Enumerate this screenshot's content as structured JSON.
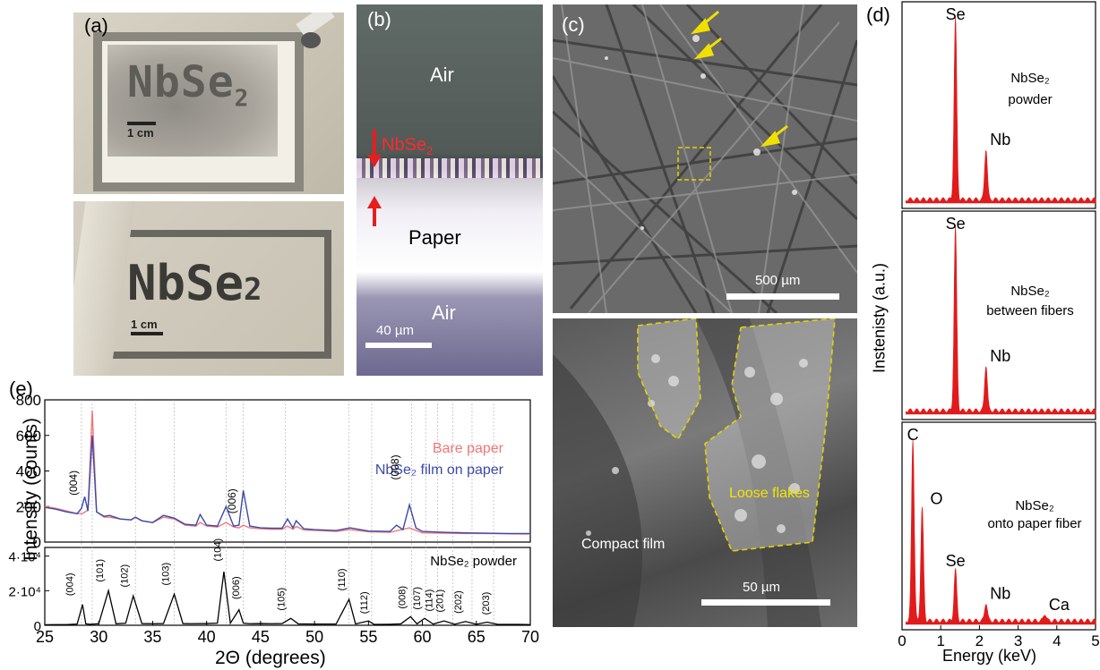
{
  "panels": {
    "a": {
      "label": "(a)",
      "top_stencil_text": "NbSe",
      "top_stencil_sub": "2",
      "top_scale": "1 cm",
      "bottom_stencil_text": "NbSe",
      "bottom_stencil_sub": "2",
      "bottom_scale": "1 cm"
    },
    "b": {
      "label": "(b)",
      "air_top": "Air",
      "film": "NbSe",
      "film_sub": "2",
      "paper": "Paper",
      "air_bottom": "Air",
      "scale": "40 µm"
    },
    "c": {
      "label": "(c)",
      "scale_top": "500 µm",
      "loose": "Loose flakes",
      "compact": "Compact film",
      "scale_bottom": "50 µm"
    },
    "d": {
      "label": "(d)",
      "ylabel": "Instenisty (a.u.)",
      "xlabel": "Energy (keV)"
    },
    "e": {
      "label": "(e)",
      "ylabel": "Intensity (counts)",
      "xlabel": "2Θ (degrees)"
    }
  },
  "chart_data": [
    {
      "type": "line",
      "panel": "e-top",
      "series": [
        {
          "name": "Bare paper",
          "color": "#f07878",
          "x": [
            25,
            26,
            27,
            28,
            28.5,
            29,
            29.4,
            29.8,
            30.5,
            31,
            32,
            33,
            33.4,
            34,
            35,
            36,
            37,
            38,
            39,
            39.4,
            40,
            41,
            41.8,
            42.5,
            43,
            43.4,
            44,
            45,
            46,
            47,
            47.5,
            48,
            48.3,
            49,
            50,
            52,
            53.3,
            55,
            57,
            58.8,
            60,
            62,
            64,
            66,
            68,
            70
          ],
          "y": [
            200,
            190,
            175,
            160,
            160,
            180,
            740,
            170,
            140,
            140,
            130,
            125,
            140,
            120,
            110,
            140,
            130,
            95,
            90,
            110,
            90,
            85,
            110,
            85,
            80,
            95,
            80,
            75,
            72,
            72,
            90,
            72,
            88,
            68,
            66,
            60,
            70,
            58,
            55,
            80,
            52,
            50,
            48,
            48,
            46,
            45
          ]
        },
        {
          "name": "NbSe₂ film on paper",
          "color": "#3b4aa8",
          "x": [
            25,
            26,
            27,
            28,
            28.4,
            28.7,
            29,
            29.4,
            29.8,
            30.5,
            31,
            32,
            33,
            33.4,
            34,
            35,
            36,
            37,
            38,
            39,
            39.4,
            40,
            41,
            41.8,
            42.5,
            43,
            43.4,
            44,
            45,
            46,
            47,
            47.5,
            48,
            48.3,
            49,
            50,
            52,
            53.3,
            55,
            57,
            57.6,
            58.2,
            58.8,
            59.4,
            60,
            62,
            64,
            66,
            68,
            70
          ],
          "y": [
            195,
            185,
            170,
            160,
            190,
            255,
            175,
            600,
            170,
            145,
            150,
            130,
            125,
            140,
            120,
            110,
            150,
            135,
            100,
            95,
            155,
            95,
            90,
            200,
            90,
            95,
            290,
            90,
            80,
            78,
            78,
            130,
            80,
            120,
            75,
            70,
            65,
            80,
            62,
            60,
            95,
            70,
            210,
            80,
            60,
            55,
            52,
            50,
            48,
            48
          ]
        }
      ],
      "annotations": [
        "(004)",
        "(006)",
        "(008)"
      ],
      "xlim": [
        25,
        70
      ],
      "ylim": [
        0,
        800
      ],
      "yticks": [
        "0",
        "200",
        "400",
        "600",
        "800"
      ]
    },
    {
      "type": "line",
      "panel": "e-bottom",
      "series": [
        {
          "name": "NbSe₂ powder",
          "color": "#000000",
          "x": [
            25,
            26,
            27,
            28,
            28.5,
            28.8,
            29.2,
            30,
            30.9,
            31.6,
            32.5,
            33.2,
            34,
            35,
            36,
            37,
            37.8,
            38.5,
            40,
            41,
            41.6,
            42.2,
            43,
            43.4,
            44,
            45,
            46,
            47,
            47.8,
            48.5,
            50,
            52,
            53.2,
            53.8,
            55,
            55.5,
            56,
            57,
            58,
            58.9,
            59.5,
            60.2,
            61,
            62,
            63,
            64,
            65,
            66,
            67,
            68,
            69,
            70
          ],
          "y": [
            300,
            350,
            400,
            700,
            12000,
            800,
            600,
            900,
            20000,
            900,
            1200,
            17000,
            1000,
            900,
            1000,
            18000,
            1000,
            900,
            1000,
            1200,
            31000,
            1200,
            9000,
            1200,
            900,
            1000,
            900,
            1000,
            4000,
            800,
            700,
            700,
            15000,
            800,
            2500,
            600,
            500,
            600,
            800,
            5000,
            800,
            4000,
            700,
            2500,
            600,
            2200,
            600,
            1800,
            500,
            500,
            500,
            400
          ]
        }
      ],
      "annotations": [
        "(004)",
        "(101)",
        "(102)",
        "(103)",
        "(104)",
        "(006)",
        "(105)",
        "(110)",
        "(112)",
        "(008)",
        "(107)",
        "(114)",
        "(201)",
        "(202)",
        "(203)"
      ],
      "xlim": [
        25,
        70
      ],
      "ylim": [
        0,
        45000
      ],
      "xticks": [
        "25",
        "30",
        "35",
        "40",
        "45",
        "50",
        "55",
        "60",
        "65",
        "70"
      ],
      "yticks": [
        "0",
        "2·10⁴",
        "4·10⁴"
      ]
    },
    {
      "type": "line",
      "panel": "d-spectra",
      "xlim": [
        0,
        5
      ],
      "xticks": [
        "0",
        "1",
        "2",
        "3",
        "4",
        "5"
      ],
      "spectra": [
        {
          "title": "NbSe₂ powder",
          "peaks": [
            {
              "label": "Se",
              "x": 1.38,
              "h": 1.0
            },
            {
              "label": "Nb",
              "x": 2.17,
              "h": 0.28
            }
          ]
        },
        {
          "title": "NbSe₂ between fibers",
          "peaks": [
            {
              "label": "Se",
              "x": 1.38,
              "h": 1.0
            },
            {
              "label": "Nb",
              "x": 2.17,
              "h": 0.25
            }
          ]
        },
        {
          "title": "NbSe₂ onto paper fiber",
          "peaks": [
            {
              "label": "C",
              "x": 0.28,
              "h": 1.0
            },
            {
              "label": "O",
              "x": 0.52,
              "h": 0.62
            },
            {
              "label": "Se",
              "x": 1.38,
              "h": 0.28
            },
            {
              "label": "Nb",
              "x": 2.17,
              "h": 0.1
            },
            {
              "label": "Ca",
              "x": 3.69,
              "h": 0.04
            }
          ]
        }
      ]
    }
  ]
}
